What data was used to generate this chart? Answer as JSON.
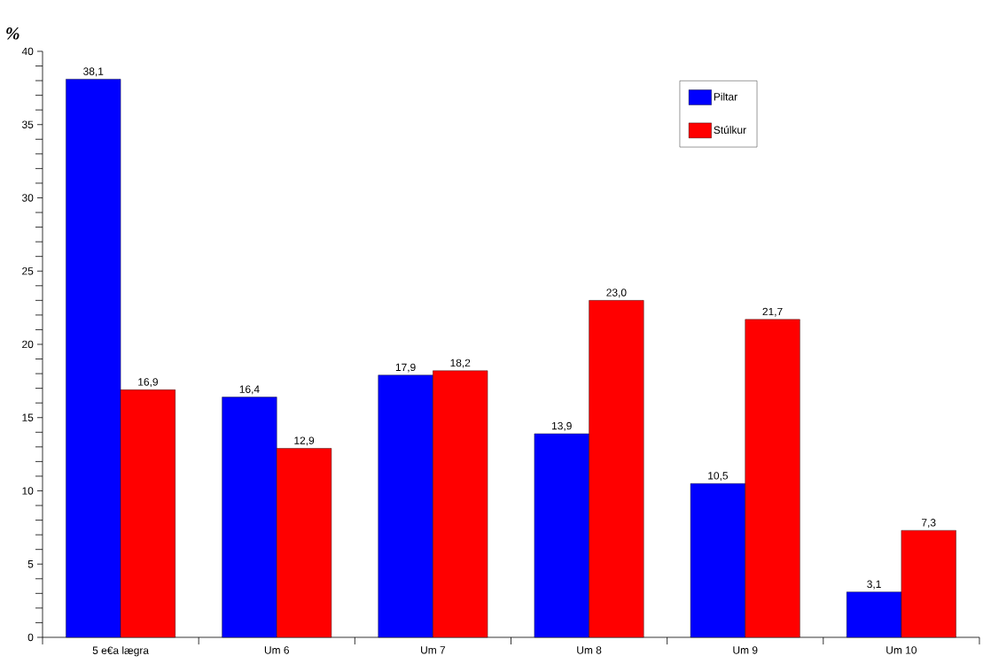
{
  "chart_data": {
    "type": "bar",
    "ylabel": "%",
    "categories": [
      "5 e€a lægra",
      "Um 6",
      "Um 7",
      "Um 8",
      "Um 9",
      "Um 10"
    ],
    "series": [
      {
        "name": "Piltar",
        "color": "#0000ff",
        "values": [
          38.1,
          16.4,
          17.9,
          13.9,
          10.5,
          3.1
        ],
        "value_labels": [
          "38,1",
          "16,4",
          "17,9",
          "13,9",
          "10,5",
          "3,1"
        ]
      },
      {
        "name": "Stúlkur",
        "color": "#ff0000",
        "values": [
          16.9,
          12.9,
          18.2,
          23.0,
          21.7,
          7.3
        ],
        "value_labels": [
          "16,9",
          "12,9",
          "18,2",
          "23,0",
          "21,7",
          "7,3"
        ]
      }
    ],
    "ylim": [
      0,
      40
    ],
    "yticks": [
      0,
      5,
      10,
      15,
      20,
      25,
      30,
      35,
      40
    ],
    "legend": "top right",
    "grid": false
  }
}
